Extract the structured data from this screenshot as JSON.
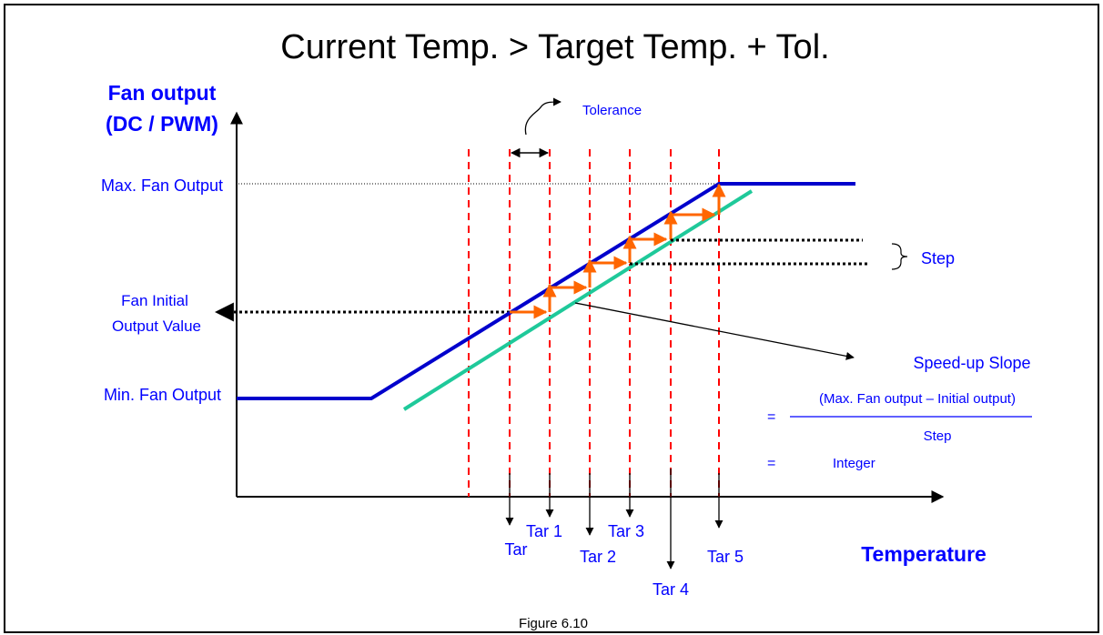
{
  "title": "Current Temp. > Target Temp. + Tol.",
  "y_axis": {
    "label_line1": "Fan output",
    "label_line2": "(DC / PWM)"
  },
  "x_axis": {
    "label": "Temperature"
  },
  "labels": {
    "max_output": "Max. Fan Output",
    "min_output": "Min. Fan Output",
    "initial_line1": "Fan Initial",
    "initial_line2": "Output Value",
    "tolerance": "Tolerance",
    "step": "Step"
  },
  "targets": [
    "Tar",
    "Tar 1",
    "Tar 2",
    "Tar 3",
    "Tar 4",
    "Tar 5"
  ],
  "formula": {
    "title": "Speed-up Slope",
    "numerator": "(Max. Fan output – Initial output)",
    "denominator": "Step",
    "equals1": "=",
    "equals2": "=",
    "result": "Integer"
  },
  "caption": "Figure 6.10",
  "colors": {
    "blue": "#0000cc",
    "green": "#1fc99a",
    "orange": "#ff6600",
    "red": "#ff0000",
    "text_blue": "#0000ff"
  }
}
